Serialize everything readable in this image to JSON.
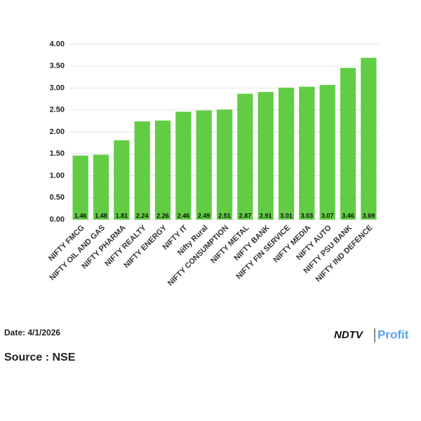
{
  "chart_data": {
    "type": "bar",
    "categories": [
      "NIFTY FMCG",
      "NIFTY OIL AND GAS",
      "NIFTY PHARMA",
      "NIFTY REALTY",
      "NIFTY ENERGY",
      "NIFTY IT",
      "Nifty Rural",
      "NIFTY CONSUMPTION",
      "NIFTY METAL",
      "NIFTY BANK",
      "NIFTY FIN SERVICE",
      "NIFTY MEDIA",
      "NIFTY AUTO",
      "NIFTY PSU BANK",
      "NIFTY IND DEFENCE"
    ],
    "values": [
      1.46,
      1.48,
      1.81,
      2.24,
      2.26,
      2.46,
      2.49,
      2.51,
      2.87,
      2.91,
      3.01,
      3.03,
      3.07,
      3.46,
      3.69
    ],
    "color": "#63cc45",
    "ylim": [
      0,
      4
    ],
    "yticks": [
      {
        "value": 0,
        "label": "0.00"
      },
      {
        "value": 0.5,
        "label": "0.50"
      },
      {
        "value": 1,
        "label": "1.00"
      },
      {
        "value": 1.5,
        "label": "1.50"
      },
      {
        "value": 2,
        "label": "2.00"
      },
      {
        "value": 2.5,
        "label": "2.50"
      },
      {
        "value": 3,
        "label": "3.00"
      },
      {
        "value": 3.5,
        "label": "3.50"
      },
      {
        "value": 4,
        "label": "4.00"
      }
    ],
    "grid": true
  },
  "footer": {
    "date": "Date: 4/1/2026",
    "source": "Source : NSE",
    "brand": "NDTV",
    "brand_sub": "Profit"
  }
}
